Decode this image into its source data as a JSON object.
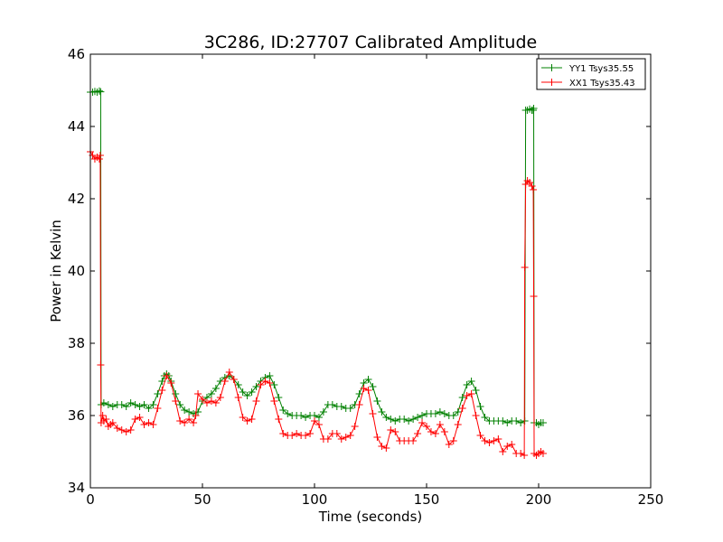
{
  "chart_data": {
    "type": "line",
    "title": "3C286, ID:27707 Calibrated Amplitude",
    "xlabel": "Time (seconds)",
    "ylabel": "Power in Kelvin",
    "xlim": [
      0,
      250
    ],
    "ylim": [
      34,
      46
    ],
    "xticks": [
      0,
      50,
      100,
      150,
      200,
      250
    ],
    "yticks": [
      34,
      36,
      38,
      40,
      42,
      44,
      46
    ],
    "grid": false,
    "legend_position": "top-right",
    "marker": "plus",
    "series": [
      {
        "name": "YY1 Tsys35.55",
        "color": "#008000",
        "points": [
          [
            0,
            44.95
          ],
          [
            1,
            44.95
          ],
          [
            2,
            44.97
          ],
          [
            3,
            44.95
          ],
          [
            4,
            44.98
          ],
          [
            4.6,
            44.96
          ],
          [
            4.8,
            36.3
          ],
          [
            6,
            36.35
          ],
          [
            8,
            36.3
          ],
          [
            10,
            36.25
          ],
          [
            12,
            36.3
          ],
          [
            14,
            36.3
          ],
          [
            16,
            36.25
          ],
          [
            18,
            36.35
          ],
          [
            20,
            36.3
          ],
          [
            22,
            36.25
          ],
          [
            24,
            36.3
          ],
          [
            26,
            36.2
          ],
          [
            28,
            36.3
          ],
          [
            30,
            36.6
          ],
          [
            32,
            36.95
          ],
          [
            33,
            37.1
          ],
          [
            34,
            37.15
          ],
          [
            35,
            37.1
          ],
          [
            36,
            36.95
          ],
          [
            38,
            36.6
          ],
          [
            40,
            36.3
          ],
          [
            42,
            36.15
          ],
          [
            44,
            36.1
          ],
          [
            46,
            36.05
          ],
          [
            48,
            36.1
          ],
          [
            50,
            36.4
          ],
          [
            52,
            36.5
          ],
          [
            54,
            36.6
          ],
          [
            56,
            36.75
          ],
          [
            58,
            36.95
          ],
          [
            60,
            37.05
          ],
          [
            62,
            37.1
          ],
          [
            64,
            37.0
          ],
          [
            66,
            36.85
          ],
          [
            68,
            36.65
          ],
          [
            70,
            36.55
          ],
          [
            72,
            36.65
          ],
          [
            74,
            36.8
          ],
          [
            76,
            36.95
          ],
          [
            78,
            37.05
          ],
          [
            80,
            37.1
          ],
          [
            82,
            36.85
          ],
          [
            84,
            36.5
          ],
          [
            86,
            36.15
          ],
          [
            88,
            36.05
          ],
          [
            90,
            36.0
          ],
          [
            92,
            36.0
          ],
          [
            94,
            36.0
          ],
          [
            96,
            35.95
          ],
          [
            98,
            36.0
          ],
          [
            100,
            36.0
          ],
          [
            102,
            35.95
          ],
          [
            104,
            36.1
          ],
          [
            106,
            36.3
          ],
          [
            108,
            36.3
          ],
          [
            110,
            36.25
          ],
          [
            112,
            36.25
          ],
          [
            114,
            36.2
          ],
          [
            116,
            36.2
          ],
          [
            118,
            36.3
          ],
          [
            120,
            36.6
          ],
          [
            122,
            36.9
          ],
          [
            124,
            37.0
          ],
          [
            126,
            36.8
          ],
          [
            128,
            36.4
          ],
          [
            130,
            36.1
          ],
          [
            132,
            35.95
          ],
          [
            134,
            35.9
          ],
          [
            136,
            35.85
          ],
          [
            138,
            35.9
          ],
          [
            140,
            35.9
          ],
          [
            142,
            35.85
          ],
          [
            144,
            35.9
          ],
          [
            146,
            35.95
          ],
          [
            148,
            36.0
          ],
          [
            150,
            36.05
          ],
          [
            152,
            36.05
          ],
          [
            154,
            36.05
          ],
          [
            156,
            36.1
          ],
          [
            158,
            36.05
          ],
          [
            160,
            36.0
          ],
          [
            162,
            36.0
          ],
          [
            164,
            36.1
          ],
          [
            166,
            36.5
          ],
          [
            168,
            36.85
          ],
          [
            170,
            36.95
          ],
          [
            172,
            36.7
          ],
          [
            174,
            36.25
          ],
          [
            176,
            35.95
          ],
          [
            178,
            35.85
          ],
          [
            180,
            35.85
          ],
          [
            182,
            35.85
          ],
          [
            184,
            35.85
          ],
          [
            186,
            35.8
          ],
          [
            188,
            35.85
          ],
          [
            190,
            35.85
          ],
          [
            192,
            35.8
          ],
          [
            193.8,
            35.85
          ],
          [
            194.2,
            44.45
          ],
          [
            195,
            44.45
          ],
          [
            196,
            44.48
          ],
          [
            197,
            44.45
          ],
          [
            197.6,
            44.45
          ],
          [
            197.8,
            44.5
          ],
          [
            198,
            35.8
          ],
          [
            199,
            35.8
          ],
          [
            200,
            35.75
          ],
          [
            201,
            35.8
          ],
          [
            202,
            35.8
          ]
        ]
      },
      {
        "name": "XX1 Tsys35.43",
        "color": "#ff0000",
        "points": [
          [
            0,
            43.3
          ],
          [
            1,
            43.2
          ],
          [
            2,
            43.1
          ],
          [
            3,
            43.15
          ],
          [
            4,
            43.1
          ],
          [
            4.4,
            43.2
          ],
          [
            4.6,
            37.4
          ],
          [
            4.8,
            35.8
          ],
          [
            5.5,
            36.0
          ],
          [
            6,
            35.85
          ],
          [
            7,
            35.9
          ],
          [
            8,
            35.7
          ],
          [
            9,
            35.75
          ],
          [
            10,
            35.8
          ],
          [
            12,
            35.65
          ],
          [
            14,
            35.6
          ],
          [
            16,
            35.55
          ],
          [
            18,
            35.6
          ],
          [
            20,
            35.9
          ],
          [
            22,
            35.95
          ],
          [
            24,
            35.75
          ],
          [
            26,
            35.8
          ],
          [
            28,
            35.75
          ],
          [
            30,
            36.2
          ],
          [
            32,
            36.7
          ],
          [
            34,
            37.1
          ],
          [
            36,
            36.9
          ],
          [
            38,
            36.4
          ],
          [
            40,
            35.85
          ],
          [
            42,
            35.8
          ],
          [
            44,
            35.9
          ],
          [
            46,
            35.8
          ],
          [
            47,
            36.0
          ],
          [
            48,
            36.6
          ],
          [
            50,
            36.45
          ],
          [
            52,
            36.35
          ],
          [
            54,
            36.4
          ],
          [
            56,
            36.35
          ],
          [
            58,
            36.5
          ],
          [
            60,
            36.95
          ],
          [
            62,
            37.2
          ],
          [
            64,
            37.0
          ],
          [
            66,
            36.5
          ],
          [
            68,
            35.95
          ],
          [
            70,
            35.85
          ],
          [
            72,
            35.9
          ],
          [
            74,
            36.4
          ],
          [
            76,
            36.85
          ],
          [
            78,
            36.95
          ],
          [
            80,
            36.9
          ],
          [
            82,
            36.4
          ],
          [
            84,
            35.9
          ],
          [
            86,
            35.5
          ],
          [
            88,
            35.45
          ],
          [
            90,
            35.45
          ],
          [
            92,
            35.5
          ],
          [
            94,
            35.45
          ],
          [
            96,
            35.45
          ],
          [
            98,
            35.5
          ],
          [
            100,
            35.85
          ],
          [
            102,
            35.75
          ],
          [
            104,
            35.35
          ],
          [
            106,
            35.35
          ],
          [
            108,
            35.5
          ],
          [
            110,
            35.5
          ],
          [
            112,
            35.35
          ],
          [
            114,
            35.4
          ],
          [
            116,
            35.45
          ],
          [
            118,
            35.7
          ],
          [
            120,
            36.3
          ],
          [
            122,
            36.75
          ],
          [
            124,
            36.7
          ],
          [
            126,
            36.05
          ],
          [
            128,
            35.4
          ],
          [
            130,
            35.15
          ],
          [
            132,
            35.1
          ],
          [
            134,
            35.6
          ],
          [
            136,
            35.55
          ],
          [
            138,
            35.3
          ],
          [
            140,
            35.3
          ],
          [
            142,
            35.3
          ],
          [
            144,
            35.3
          ],
          [
            146,
            35.5
          ],
          [
            148,
            35.8
          ],
          [
            150,
            35.7
          ],
          [
            152,
            35.55
          ],
          [
            154,
            35.5
          ],
          [
            156,
            35.75
          ],
          [
            158,
            35.55
          ],
          [
            160,
            35.2
          ],
          [
            162,
            35.3
          ],
          [
            164,
            35.75
          ],
          [
            166,
            36.2
          ],
          [
            168,
            36.55
          ],
          [
            170,
            36.6
          ],
          [
            172,
            36.0
          ],
          [
            174,
            35.45
          ],
          [
            176,
            35.3
          ],
          [
            178,
            35.25
          ],
          [
            180,
            35.3
          ],
          [
            182,
            35.35
          ],
          [
            184,
            35.0
          ],
          [
            186,
            35.15
          ],
          [
            188,
            35.2
          ],
          [
            190,
            34.95
          ],
          [
            192,
            34.95
          ],
          [
            193.6,
            34.9
          ],
          [
            193.8,
            40.1
          ],
          [
            194.2,
            42.4
          ],
          [
            195,
            42.5
          ],
          [
            196,
            42.45
          ],
          [
            197,
            42.35
          ],
          [
            197.6,
            42.25
          ],
          [
            197.8,
            39.3
          ],
          [
            198,
            34.95
          ],
          [
            199,
            34.9
          ],
          [
            200,
            34.95
          ],
          [
            201,
            35.0
          ],
          [
            202,
            34.95
          ]
        ]
      }
    ]
  }
}
